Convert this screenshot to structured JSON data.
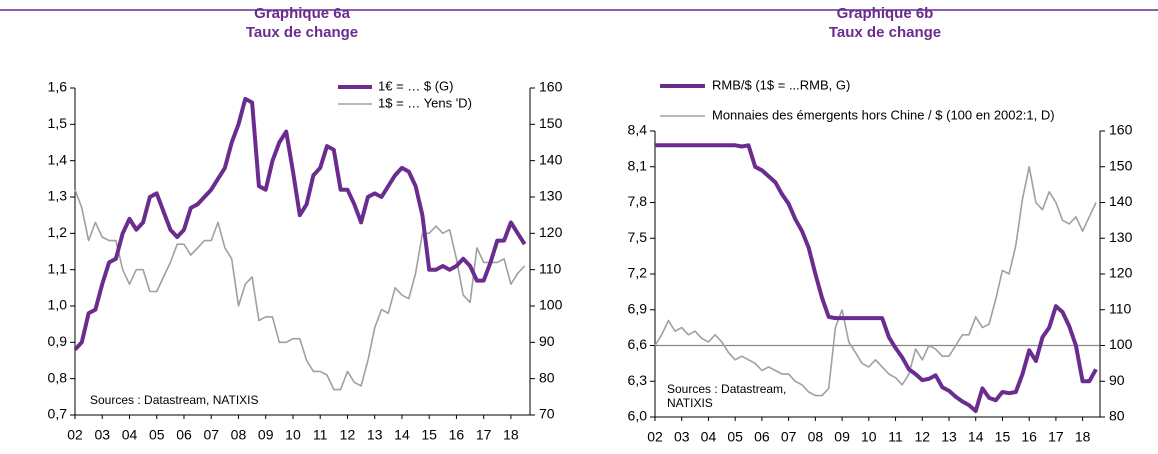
{
  "chart_data": [
    {
      "type": "line",
      "title": "Graphique 6a",
      "subtitle": "Taux de change",
      "source": [
        "Sources : Datastream, NATIXIS"
      ],
      "x": [
        2002,
        2002.25,
        2002.5,
        2002.75,
        2003,
        2003.25,
        2003.5,
        2003.75,
        2004,
        2004.25,
        2004.5,
        2004.75,
        2005,
        2005.25,
        2005.5,
        2005.75,
        2006,
        2006.25,
        2006.5,
        2006.75,
        2007,
        2007.25,
        2007.5,
        2007.75,
        2008,
        2008.25,
        2008.5,
        2008.75,
        2009,
        2009.25,
        2009.5,
        2009.75,
        2010,
        2010.25,
        2010.5,
        2010.75,
        2011,
        2011.25,
        2011.5,
        2011.75,
        2012,
        2012.25,
        2012.5,
        2012.75,
        2013,
        2013.25,
        2013.5,
        2013.75,
        2014,
        2014.25,
        2014.5,
        2014.75,
        2015,
        2015.25,
        2015.5,
        2015.75,
        2016,
        2016.25,
        2016.5,
        2016.75,
        2017,
        2017.25,
        2017.5,
        2017.75,
        2018,
        2018.25,
        2018.5
      ],
      "series": [
        {
          "name": "1€ = … $ (G)",
          "color": "#6a2c8e",
          "values": [
            0.88,
            0.9,
            0.98,
            0.99,
            1.06,
            1.12,
            1.13,
            1.2,
            1.24,
            1.21,
            1.23,
            1.3,
            1.31,
            1.26,
            1.21,
            1.19,
            1.21,
            1.27,
            1.28,
            1.3,
            1.32,
            1.35,
            1.38,
            1.45,
            1.5,
            1.57,
            1.56,
            1.33,
            1.32,
            1.4,
            1.45,
            1.48,
            1.37,
            1.25,
            1.28,
            1.36,
            1.38,
            1.44,
            1.43,
            1.32,
            1.32,
            1.28,
            1.23,
            1.3,
            1.31,
            1.3,
            1.33,
            1.36,
            1.38,
            1.37,
            1.33,
            1.25,
            1.1,
            1.1,
            1.11,
            1.1,
            1.11,
            1.13,
            1.11,
            1.07,
            1.07,
            1.12,
            1.18,
            1.18,
            1.23,
            1.2,
            1.17
          ]
        },
        {
          "name": "1$ = … Yens 'D)",
          "color": "#a0a0a0",
          "axis": "y2",
          "values": [
            132,
            127,
            118,
            123,
            119,
            118,
            118,
            110,
            106,
            110,
            110,
            104,
            104,
            108,
            112,
            117,
            117,
            114,
            116,
            118,
            118,
            123,
            116,
            113,
            100,
            106,
            108,
            96,
            97,
            97,
            90,
            90,
            91,
            91,
            85,
            82,
            82,
            81,
            77,
            77,
            82,
            79,
            78,
            85,
            94,
            99,
            98,
            105,
            103,
            102,
            109,
            120,
            120,
            122,
            120,
            121,
            113,
            103,
            101,
            116,
            112,
            112,
            112,
            113,
            106,
            109,
            111
          ]
        }
      ],
      "xlim": [
        2002,
        2018.7
      ],
      "xticks": [
        {
          "value": 2002,
          "label": "02"
        },
        {
          "value": 2003,
          "label": "03"
        },
        {
          "value": 2004,
          "label": "04"
        },
        {
          "value": 2005,
          "label": "05"
        },
        {
          "value": 2006,
          "label": "06"
        },
        {
          "value": 2007,
          "label": "07"
        },
        {
          "value": 2008,
          "label": "08"
        },
        {
          "value": 2009,
          "label": "09"
        },
        {
          "value": 2010,
          "label": "10"
        },
        {
          "value": 2011,
          "label": "11"
        },
        {
          "value": 2012,
          "label": "12"
        },
        {
          "value": 2013,
          "label": "13"
        },
        {
          "value": 2014,
          "label": "14"
        },
        {
          "value": 2015,
          "label": "15"
        },
        {
          "value": 2016,
          "label": "16"
        },
        {
          "value": 2017,
          "label": "17"
        },
        {
          "value": 2018,
          "label": "18"
        }
      ],
      "ylim": [
        0.7,
        1.6
      ],
      "yticks": [
        {
          "value": 0.7,
          "label": "0,7"
        },
        {
          "value": 0.8,
          "label": "0,8"
        },
        {
          "value": 0.9,
          "label": "0,9"
        },
        {
          "value": 1.0,
          "label": "1,0"
        },
        {
          "value": 1.1,
          "label": "1,1"
        },
        {
          "value": 1.2,
          "label": "1,2"
        },
        {
          "value": 1.3,
          "label": "1,3"
        },
        {
          "value": 1.4,
          "label": "1,4"
        },
        {
          "value": 1.5,
          "label": "1,5"
        },
        {
          "value": 1.6,
          "label": "1,6"
        }
      ],
      "y2lim": [
        70,
        160
      ],
      "y2ticks": [
        70,
        80,
        90,
        100,
        110,
        120,
        130,
        140,
        150,
        160
      ],
      "legend": "top-right"
    },
    {
      "type": "line",
      "title": "Graphique 6b",
      "subtitle": "Taux de change",
      "source": [
        "Sources : Datastream,",
        "NATIXIS"
      ],
      "x": [
        2002,
        2002.25,
        2002.5,
        2002.75,
        2003,
        2003.25,
        2003.5,
        2003.75,
        2004,
        2004.25,
        2004.5,
        2004.75,
        2005,
        2005.25,
        2005.5,
        2005.75,
        2006,
        2006.25,
        2006.5,
        2006.75,
        2007,
        2007.25,
        2007.5,
        2007.75,
        2008,
        2008.25,
        2008.5,
        2008.75,
        2009,
        2009.25,
        2009.5,
        2009.75,
        2010,
        2010.25,
        2010.5,
        2010.75,
        2011,
        2011.25,
        2011.5,
        2011.75,
        2012,
        2012.25,
        2012.5,
        2012.75,
        2013,
        2013.25,
        2013.5,
        2013.75,
        2014,
        2014.25,
        2014.5,
        2014.75,
        2015,
        2015.25,
        2015.5,
        2015.75,
        2016,
        2016.25,
        2016.5,
        2016.75,
        2017,
        2017.25,
        2017.5,
        2017.75,
        2018,
        2018.25,
        2018.5
      ],
      "series": [
        {
          "name": "RMB/$ (1$ = ...RMB, G)",
          "color": "#6a2c8e",
          "values": [
            8.28,
            8.28,
            8.28,
            8.28,
            8.28,
            8.28,
            8.28,
            8.28,
            8.28,
            8.28,
            8.28,
            8.28,
            8.28,
            8.27,
            8.28,
            8.1,
            8.07,
            8.02,
            7.97,
            7.87,
            7.79,
            7.66,
            7.56,
            7.42,
            7.2,
            7.0,
            6.84,
            6.83,
            6.83,
            6.83,
            6.83,
            6.83,
            6.83,
            6.83,
            6.83,
            6.67,
            6.58,
            6.5,
            6.4,
            6.36,
            6.31,
            6.32,
            6.35,
            6.25,
            6.22,
            6.17,
            6.13,
            6.1,
            6.05,
            6.24,
            6.16,
            6.14,
            6.21,
            6.2,
            6.21,
            6.36,
            6.56,
            6.47,
            6.67,
            6.75,
            6.93,
            6.88,
            6.76,
            6.6,
            6.3,
            6.3,
            6.4
          ]
        },
        {
          "name": "Monnaies des émergents hors Chine / $ (100 en 2002:1, D)",
          "color": "#a0a0a0",
          "axis": "y2",
          "values": [
            100,
            103,
            107,
            104,
            105,
            103,
            104,
            102,
            101,
            103,
            101,
            98,
            96,
            97,
            96,
            95,
            93,
            94,
            93,
            92,
            92,
            90,
            89,
            87,
            86,
            86,
            88,
            105,
            110,
            101,
            98,
            95,
            94,
            96,
            94,
            92,
            91,
            89,
            92,
            99,
            96,
            100,
            99,
            97,
            97,
            100,
            103,
            103,
            108,
            105,
            106,
            113,
            121,
            120,
            128,
            141,
            150,
            140,
            138,
            143,
            140,
            135,
            134,
            136,
            132,
            136,
            140
          ]
        }
      ],
      "xlim": [
        2002,
        2018.65
      ],
      "xticks": [
        {
          "value": 2002,
          "label": "02"
        },
        {
          "value": 2003,
          "label": "03"
        },
        {
          "value": 2004,
          "label": "04"
        },
        {
          "value": 2005,
          "label": "05"
        },
        {
          "value": 2006,
          "label": "06"
        },
        {
          "value": 2007,
          "label": "07"
        },
        {
          "value": 2008,
          "label": "08"
        },
        {
          "value": 2009,
          "label": "09"
        },
        {
          "value": 2010,
          "label": "10"
        },
        {
          "value": 2011,
          "label": "11"
        },
        {
          "value": 2012,
          "label": "12"
        },
        {
          "value": 2013,
          "label": "13"
        },
        {
          "value": 2014,
          "label": "14"
        },
        {
          "value": 2015,
          "label": "15"
        },
        {
          "value": 2016,
          "label": "16"
        },
        {
          "value": 2017,
          "label": "17"
        },
        {
          "value": 2018,
          "label": "18"
        }
      ],
      "ylim": [
        6.0,
        8.4
      ],
      "yticks": [
        {
          "value": 6.0,
          "label": "6,0"
        },
        {
          "value": 6.3,
          "label": "6,3"
        },
        {
          "value": 6.6,
          "label": "6,6"
        },
        {
          "value": 6.9,
          "label": "6,9"
        },
        {
          "value": 7.2,
          "label": "7,2"
        },
        {
          "value": 7.5,
          "label": "7,5"
        },
        {
          "value": 7.8,
          "label": "7,8"
        },
        {
          "value": 8.1,
          "label": "8,1"
        },
        {
          "value": 8.4,
          "label": "8,4"
        }
      ],
      "y2lim": [
        80,
        160
      ],
      "y2ticks": [
        80,
        90,
        100,
        110,
        120,
        130,
        140,
        150,
        160
      ],
      "y2_reference_line": 100,
      "legend": "top"
    }
  ]
}
